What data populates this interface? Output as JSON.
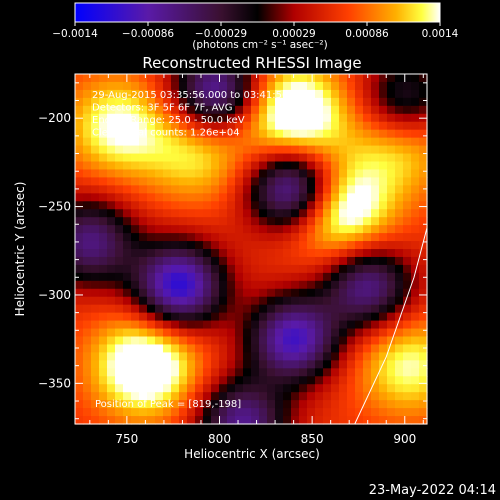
{
  "chart_data": {
    "type": "heatmap",
    "title": "Reconstructed RHESSI Image",
    "xlabel": "Heliocentric X (arcsec)",
    "ylabel": "Heliocentric Y (arcsec)",
    "xlim": [
      722,
      912
    ],
    "ylim": [
      -373,
      -175
    ],
    "xticks": [
      750,
      800,
      850,
      900
    ],
    "yticks": [
      -200,
      -250,
      -300,
      -350
    ],
    "colorbar": {
      "range": [
        -0.0014,
        0.0014
      ],
      "ticks": [
        "-0.0014",
        "-0.00086",
        "-0.00029",
        "0.00029",
        "0.00086",
        "0.0014"
      ],
      "unit_label": "(photons cm⁻² s⁻¹ asec⁻²)"
    },
    "annotations": [
      "29-Aug-2015 03:35:56.000 to 03:41:56.000",
      "Detectors: 3F 5F 6F 7F, AVG",
      "Energy Range: 25.0 - 50.0 keV",
      "Clean     Total counts: 1.26e+04"
    ],
    "peak_label": "Position of Peak = [819,-198]",
    "peak": [
      819,
      -198
    ],
    "bright_sources": [
      {
        "x": 760,
        "y": -340,
        "v": 1.0
      },
      {
        "x": 840,
        "y": -198,
        "v": 1.0
      },
      {
        "x": 864,
        "y": -252,
        "v": 1.0
      },
      {
        "x": 788,
        "y": -220,
        "v": 0.55
      },
      {
        "x": 745,
        "y": -205,
        "v": 0.7
      },
      {
        "x": 902,
        "y": -340,
        "v": 0.65
      },
      {
        "x": 898,
        "y": -215,
        "v": 0.55
      }
    ],
    "dark_sources": [
      {
        "x": 840,
        "y": -240,
        "v": 1.0
      },
      {
        "x": 778,
        "y": -295,
        "v": 1.0
      },
      {
        "x": 798,
        "y": -185,
        "v": 0.85
      },
      {
        "x": 840,
        "y": -325,
        "v": 0.9
      },
      {
        "x": 730,
        "y": -270,
        "v": 0.7
      },
      {
        "x": 880,
        "y": -295,
        "v": 0.75
      },
      {
        "x": 812,
        "y": -372,
        "v": 0.75
      },
      {
        "x": 900,
        "y": -190,
        "v": 0.55
      }
    ],
    "limb_arc": [
      [
        873,
        -373
      ],
      [
        890,
        -335
      ],
      [
        905,
        -290
      ],
      [
        912,
        -262
      ]
    ],
    "colors": {
      "low": "#0000ff",
      "zero": "#000000",
      "high": "#ffffff"
    }
  },
  "footer": {
    "timestamp": "23-May-2022 04:14"
  }
}
